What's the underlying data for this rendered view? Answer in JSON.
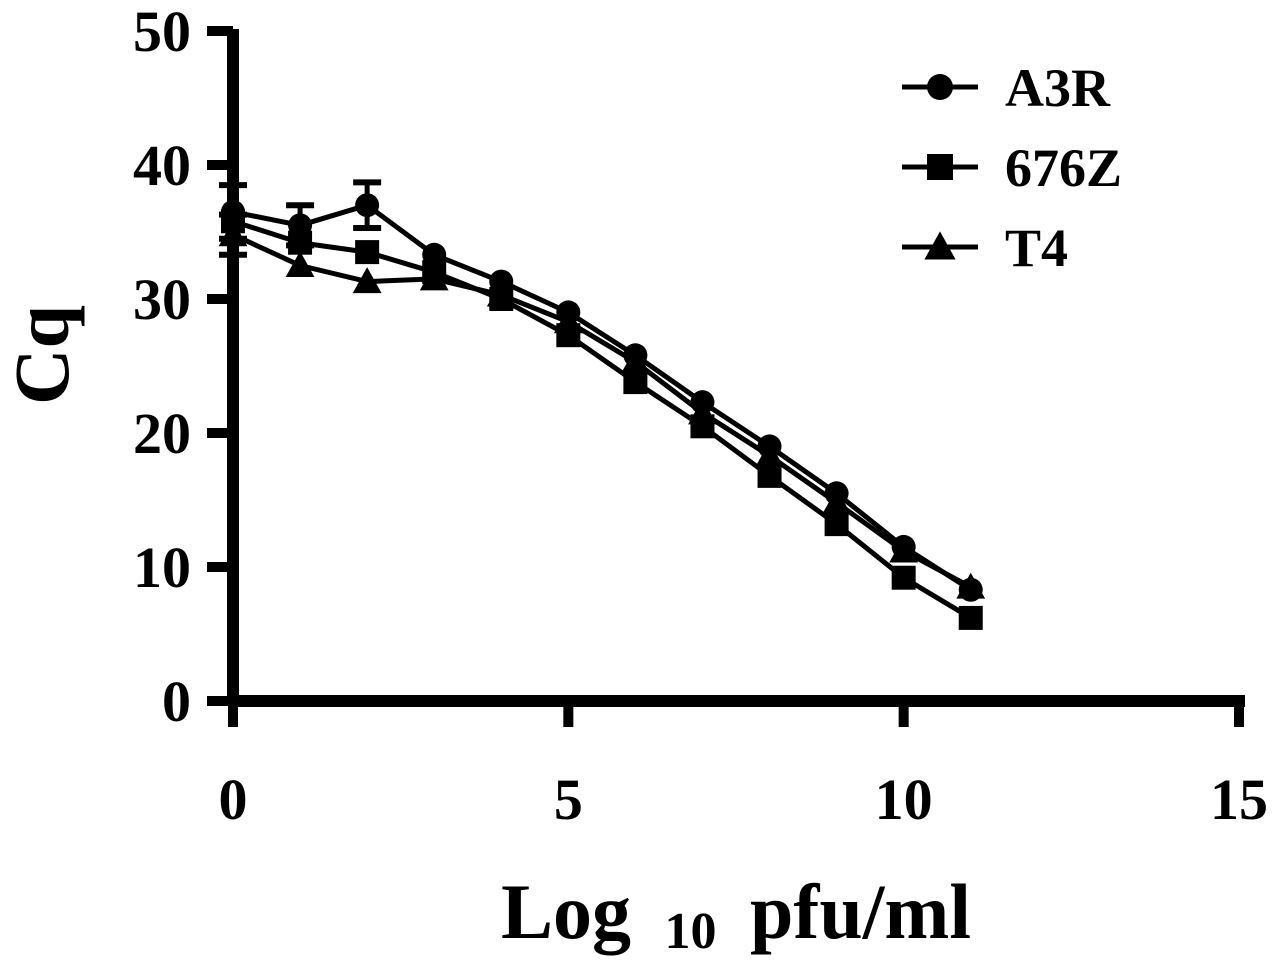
{
  "chart_data": {
    "type": "line",
    "title": "",
    "xlabel": "Log",
    "xlabel_subscript": "10",
    "xlabel_suffix": "pfu/ml",
    "ylabel": "Cq",
    "xlim": [
      0,
      15
    ],
    "ylim": [
      0,
      50
    ],
    "xticks": [
      0,
      5,
      10,
      15
    ],
    "yticks": [
      0,
      10,
      20,
      30,
      40,
      50
    ],
    "grid": false,
    "legend_position": "top-right",
    "colors": {
      "line": "#000000",
      "background": "#ffffff"
    },
    "series": [
      {
        "name": "A3R",
        "marker": "circle",
        "x": [
          0,
          1,
          2,
          3,
          4,
          5,
          6,
          7,
          8,
          9,
          10,
          11
        ],
        "y": [
          36.5,
          35.5,
          37.0,
          33.3,
          31.3,
          29.0,
          25.8,
          22.3,
          19.0,
          15.5,
          11.5,
          8.3
        ],
        "error": [
          2.0,
          1.5,
          1.7,
          0,
          0,
          0,
          0,
          0,
          0,
          0,
          0,
          0
        ]
      },
      {
        "name": "676Z",
        "marker": "square",
        "x": [
          0,
          1,
          2,
          3,
          4,
          5,
          6,
          7,
          8,
          9,
          10,
          11
        ],
        "y": [
          35.8,
          34.2,
          33.5,
          32.0,
          30.0,
          27.3,
          23.8,
          20.5,
          16.8,
          13.2,
          9.2,
          6.2
        ],
        "error": [
          0,
          0,
          0,
          0,
          0,
          0,
          0,
          0,
          0,
          0,
          0,
          0
        ]
      },
      {
        "name": "T4",
        "marker": "triangle",
        "x": [
          0,
          1,
          2,
          3,
          4,
          5,
          6,
          7,
          8,
          9,
          10,
          11
        ],
        "y": [
          34.8,
          32.5,
          31.3,
          31.5,
          30.3,
          28.3,
          25.3,
          21.5,
          18.3,
          14.8,
          11.2,
          8.5
        ],
        "error": [
          1.5,
          0,
          0,
          0,
          0,
          0,
          0,
          0,
          0,
          0,
          0,
          0
        ]
      }
    ]
  }
}
